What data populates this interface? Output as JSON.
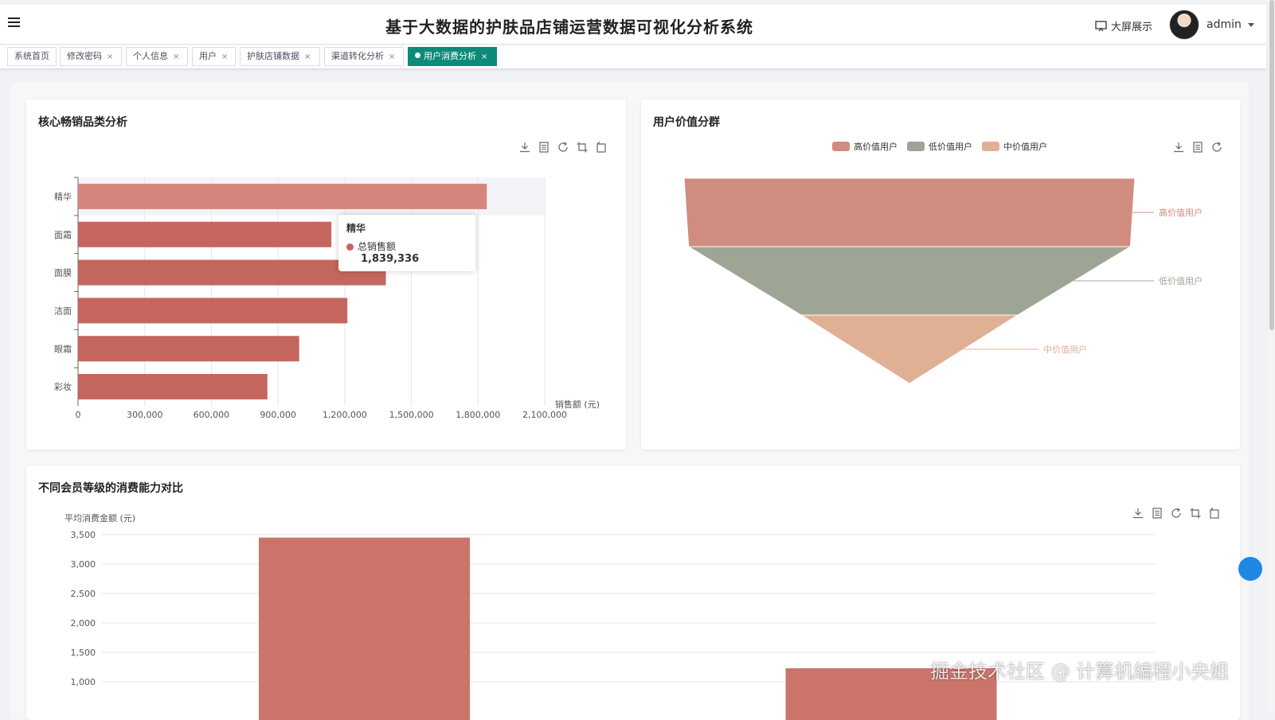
{
  "header": {
    "title": "基于大数据的护肤品店铺运营数据可视化分析系统",
    "bigscreen_label": "大屏展示",
    "user_name": "admin"
  },
  "tabs": [
    {
      "label": "系统首页",
      "closable": false,
      "active": false
    },
    {
      "label": "修改密码",
      "closable": true,
      "active": false
    },
    {
      "label": "个人信息",
      "closable": true,
      "active": false
    },
    {
      "label": "用户",
      "closable": true,
      "active": false
    },
    {
      "label": "护肤店铺数据",
      "closable": true,
      "active": false
    },
    {
      "label": "渠道转化分析",
      "closable": true,
      "active": false
    },
    {
      "label": "用户消费分析",
      "closable": true,
      "active": true
    }
  ],
  "tab_close_glyph": "×",
  "toolbox_icons": [
    "download-icon",
    "data-view-icon",
    "refresh-icon",
    "crop-icon",
    "restore-icon"
  ],
  "colors": {
    "accent_tab": "#0c8a7a",
    "bar": "#c4665d",
    "bar_highlight": "#d6857d",
    "high_value": "#d18c80",
    "low_value": "#9ea595",
    "mid_value": "#e0b095",
    "bottom_bar": "#cb746a"
  },
  "chart_data": [
    {
      "type": "bar",
      "orientation": "horizontal",
      "title": "核心畅销品类分析",
      "categories": [
        "精华",
        "面霜",
        "面膜",
        "洁面",
        "眼霜",
        "彩妆"
      ],
      "series": [
        {
          "name": "总销售额",
          "values": [
            1839336,
            1140000,
            1385000,
            1212000,
            995000,
            852000
          ]
        }
      ],
      "xlabel": "销售额 (元)",
      "xlim": [
        0,
        2100000
      ],
      "xticks": [
        "0",
        "300,000",
        "600,000",
        "900,000",
        "1,200,000",
        "1,500,000",
        "1,800,000",
        "2,100,000"
      ],
      "grid": true,
      "tooltip": {
        "category": "精华",
        "series": "总销售额",
        "value": "1,839,336"
      }
    },
    {
      "type": "funnel",
      "title": "用户价值分群",
      "legend": [
        "高价值用户",
        "低价值用户",
        "中价值用户"
      ],
      "stages": [
        {
          "name": "高价值用户",
          "value": 100
        },
        {
          "name": "低价值用户",
          "value": 98
        },
        {
          "name": "中价值用户",
          "value": 48
        }
      ],
      "legend_position": "top-center"
    },
    {
      "type": "bar",
      "title": "不同会员等级的消费能力对比",
      "ylabel": "平均消费金额 (元)",
      "ylim": [
        0,
        3500
      ],
      "yticks": [
        "3,500",
        "3,000",
        "2,500",
        "2,000",
        "1,500",
        "1,000"
      ],
      "values": [
        3450,
        1230
      ],
      "grid": true
    }
  ],
  "watermark": "掘金技术社区 @ 计算机编程小央姐"
}
